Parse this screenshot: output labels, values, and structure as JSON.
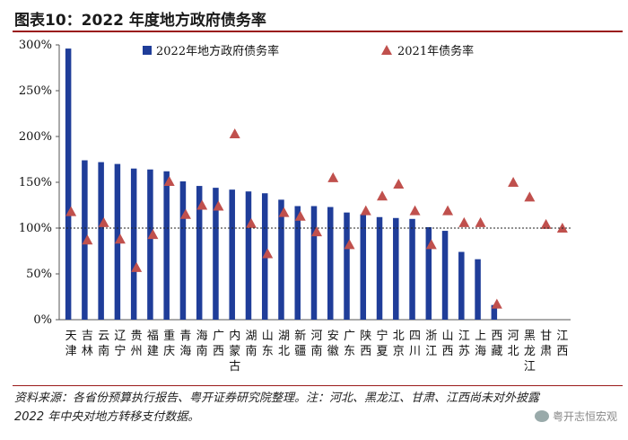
{
  "title": "图表10：2022 年度地方政府债务率",
  "chart_data": {
    "type": "bar",
    "title": "图表10：2022 年度地方政府债务率",
    "xlabel": "",
    "ylabel": "",
    "ylim": [
      0,
      300
    ],
    "yticks": [
      "0%",
      "50%",
      "100%",
      "150%",
      "200%",
      "250%",
      "300%"
    ],
    "reference_line": 100,
    "categories": [
      "天津",
      "吉林",
      "云南",
      "辽宁",
      "贵州",
      "福建",
      "重庆",
      "青海",
      "海南",
      "广西",
      "内蒙古",
      "湖南",
      "山东",
      "湖北",
      "新疆",
      "河南",
      "安徽",
      "广东",
      "陕西",
      "宁夏",
      "北京",
      "四川",
      "浙江",
      "山西",
      "江苏",
      "上海",
      "西藏",
      "河北",
      "黑龙江",
      "甘肃",
      "江西"
    ],
    "series": [
      {
        "name": "2022年地方政府债务率",
        "kind": "bar",
        "color": "#1f3d99",
        "values": [
          296,
          174,
          172,
          170,
          165,
          164,
          162,
          151,
          146,
          144,
          142,
          140,
          138,
          131,
          124,
          124,
          123,
          117,
          115,
          112,
          111,
          110,
          101,
          97,
          74,
          66,
          16,
          null,
          null,
          null,
          null
        ]
      },
      {
        "name": "2021年债务率",
        "kind": "marker",
        "color": "#c0504d",
        "values": [
          118,
          87,
          106,
          88,
          57,
          93,
          151,
          115,
          125,
          124,
          203,
          105,
          72,
          117,
          113,
          96,
          155,
          82,
          119,
          135,
          148,
          119,
          82,
          119,
          106,
          106,
          17,
          150,
          134,
          104,
          100
        ]
      }
    ],
    "legend": "top"
  },
  "source_note": "资料来源：各省份预算执行报告、粤开证券研究院整理。注：河北、黑龙江、甘肃、江西尚未对外披露 2022 年中央对地方转移支付数据。",
  "watermark": "粤开志恒宏观"
}
